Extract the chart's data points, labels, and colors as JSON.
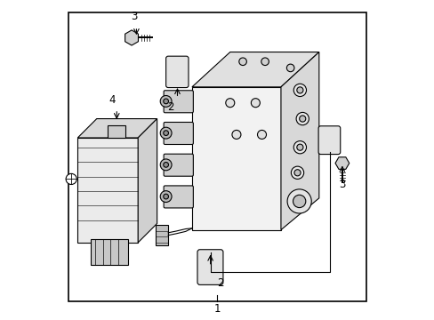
{
  "bg_color": "#ffffff",
  "border_color": "#000000",
  "line_color": "#000000",
  "fig_width": 4.89,
  "fig_height": 3.6,
  "dpi": 100
}
